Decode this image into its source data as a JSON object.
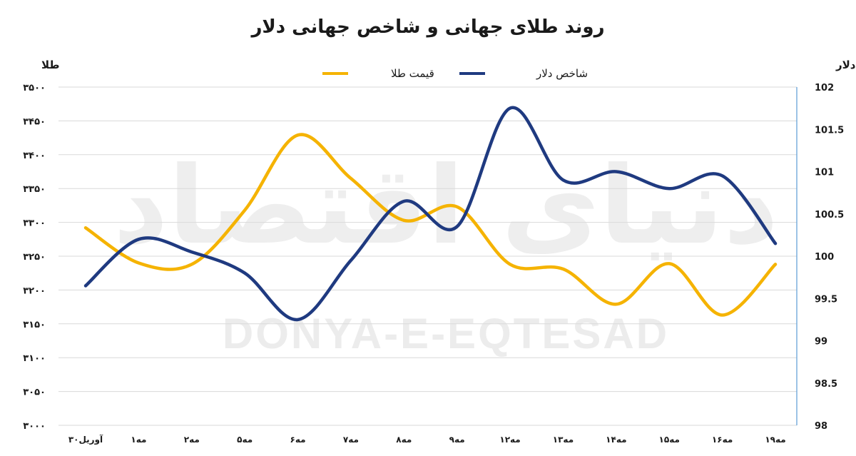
{
  "chart_data": {
    "type": "line",
    "title": "روند طلای جهانی و شاخص جهانی دلار",
    "left_axis_unit": "طلا",
    "right_axis_unit": "دلار",
    "categories": [
      "۳۰آوریل",
      "۱مه",
      "۲مه",
      "۵مه",
      "۶مه",
      "۷مه",
      "۸مه",
      "۹مه",
      "۱۲مه",
      "۱۳مه",
      "۱۴مه",
      "۱۵مه",
      "۱۶مه",
      "۱۹مه"
    ],
    "left_ticks": [
      "۳۰۰۰",
      "۳۰۵۰",
      "۳۱۰۰",
      "۳۱۵۰",
      "۳۲۰۰",
      "۳۲۵۰",
      "۳۳۰۰",
      "۳۳۵۰",
      "۳۴۰۰",
      "۳۴۵۰",
      "۳۵۰۰"
    ],
    "right_ticks": [
      "98",
      "98.5",
      "99",
      "99.5",
      "100",
      "100.5",
      "101",
      "101.5",
      "102"
    ],
    "left_range": [
      3000,
      3500
    ],
    "right_range": [
      98,
      102
    ],
    "series": [
      {
        "name": "قیمت طلا",
        "axis": "left",
        "color": "#f5b301",
        "values": [
          3292,
          3240,
          3238,
          3318,
          3429,
          3365,
          3303,
          3323,
          3238,
          3231,
          3179,
          3239,
          3163,
          3238
        ]
      },
      {
        "name": "شاخص دلار",
        "axis": "right",
        "color": "#1f3a80",
        "values": [
          99.65,
          100.2,
          100.05,
          99.8,
          99.25,
          99.95,
          100.65,
          100.35,
          101.75,
          100.9,
          101,
          100.8,
          100.95,
          100.15
        ]
      }
    ],
    "legend_order": [
      "شاخص دلار",
      "قیمت طلا"
    ]
  },
  "watermark": {
    "latin": "DONYA-E-EQTESAD",
    "persian": "دنیای اقتصاد"
  }
}
